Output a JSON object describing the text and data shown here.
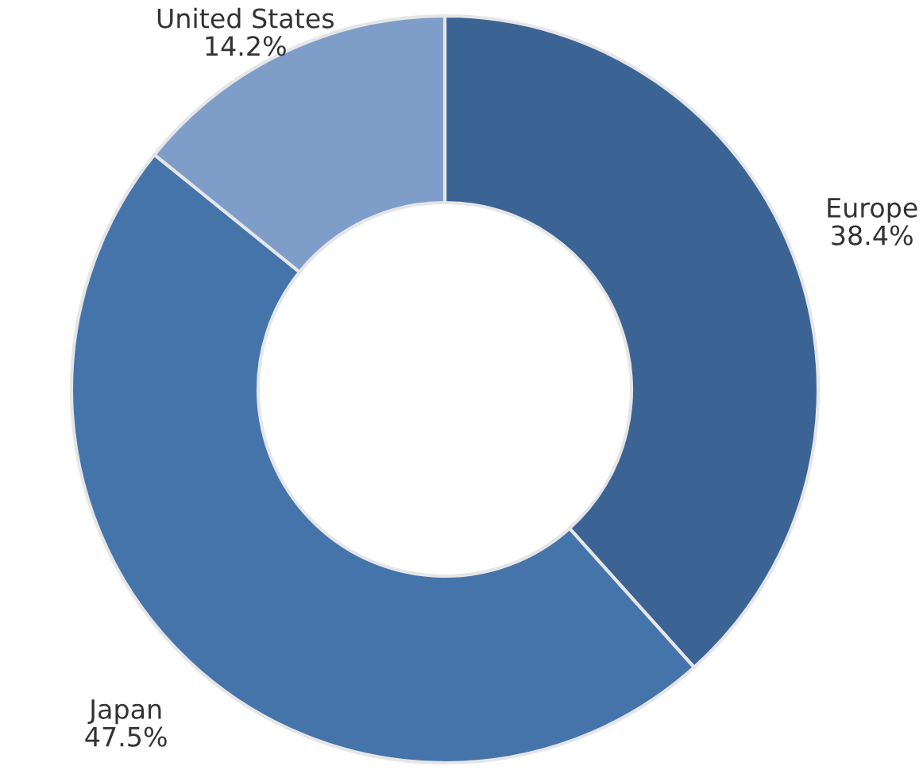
{
  "chart_data": {
    "type": "donut",
    "categories": [
      "Europe",
      "Japan",
      "United States"
    ],
    "values": [
      38.4,
      47.5,
      14.2
    ],
    "value_labels": [
      "38.4%",
      "47.5%",
      "14.2%"
    ],
    "colors": [
      "#3b6494",
      "#4574aa",
      "#7f9dc9"
    ]
  }
}
